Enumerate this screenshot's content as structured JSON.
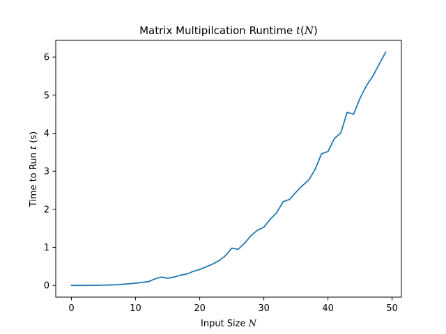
{
  "chart_data": {
    "type": "line",
    "title": {
      "prefix": "Matrix Multipilcation Runtime ",
      "math": "t",
      "paren_open": "(",
      "math_arg": "N",
      "paren_close": ")"
    },
    "xlabel": {
      "prefix": "Input Size ",
      "math": "N"
    },
    "ylabel": {
      "prefix": "Time to Run ",
      "math": "t",
      "suffix": " (s)"
    },
    "xlim": [
      -2.45,
      51.45
    ],
    "ylim": [
      -0.307,
      6.44
    ],
    "xticks": [
      0,
      10,
      20,
      30,
      40,
      50
    ],
    "yticks": [
      0,
      1,
      2,
      3,
      4,
      5,
      6
    ],
    "grid": false,
    "line_color": "#1f77b4",
    "series": [
      {
        "x": [
          0,
          1,
          2,
          3,
          4,
          5,
          6,
          7,
          8,
          9,
          10,
          11,
          12,
          13,
          14,
          15,
          16,
          17,
          18,
          19,
          20,
          21,
          22,
          23,
          24,
          25,
          26,
          27,
          28,
          29,
          30,
          31,
          32,
          33,
          34,
          35,
          36,
          37,
          38,
          39,
          40,
          41,
          42,
          43,
          44,
          45,
          46,
          47,
          48,
          49
        ],
        "y": [
          0.0,
          0.0,
          0.0,
          0.002,
          0.005,
          0.008,
          0.012,
          0.018,
          0.03,
          0.045,
          0.06,
          0.08,
          0.1,
          0.17,
          0.22,
          0.19,
          0.22,
          0.27,
          0.3,
          0.37,
          0.42,
          0.49,
          0.56,
          0.65,
          0.78,
          0.98,
          0.95,
          1.11,
          1.31,
          1.45,
          1.53,
          1.74,
          1.91,
          2.2,
          2.26,
          2.45,
          2.62,
          2.77,
          3.05,
          3.46,
          3.52,
          3.86,
          4.01,
          4.55,
          4.5,
          4.92,
          5.25,
          5.5,
          5.82,
          6.13
        ]
      }
    ]
  }
}
